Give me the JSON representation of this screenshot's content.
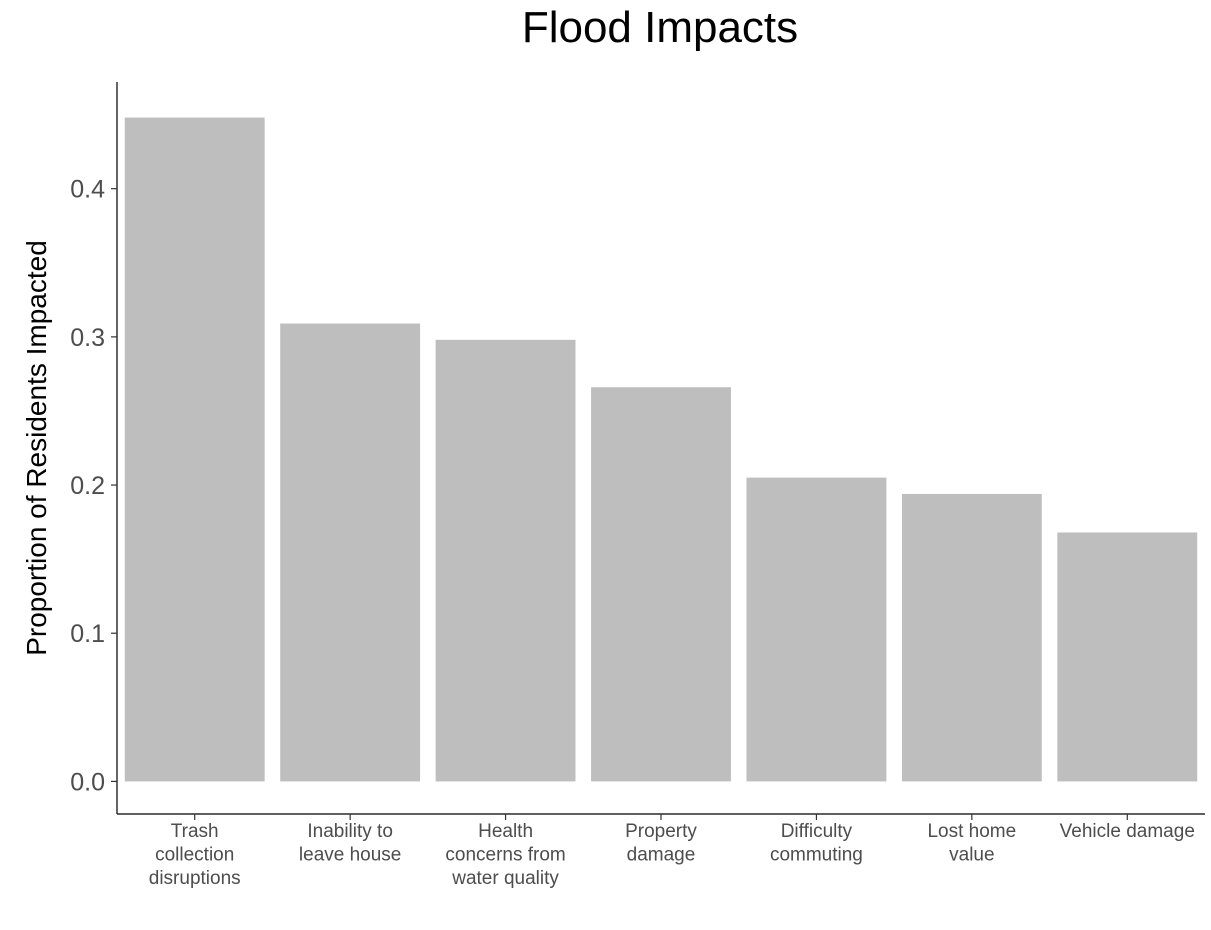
{
  "chart_data": {
    "type": "bar",
    "title": "Flood Impacts",
    "xlabel": "",
    "ylabel": "Proportion of Residents Impacted",
    "categories": [
      [
        "Trash",
        "collection",
        "disruptions"
      ],
      [
        "Inability to",
        "leave house"
      ],
      [
        "Health",
        "concerns from",
        "water quality"
      ],
      [
        "Property",
        "damage"
      ],
      [
        "Difficulty",
        "commuting"
      ],
      [
        "Lost home",
        "value"
      ],
      [
        "Vehicle damage"
      ]
    ],
    "values": [
      0.448,
      0.309,
      0.298,
      0.266,
      0.205,
      0.194,
      0.168
    ],
    "ylim": [
      -0.022,
      0.472
    ],
    "yticks": [
      0.0,
      0.1,
      0.2,
      0.3,
      0.4
    ],
    "ytick_labels": [
      "0.0",
      "0.1",
      "0.2",
      "0.3",
      "0.4"
    ],
    "bar_color": "#bebebe",
    "grid": false,
    "legend": "none"
  }
}
